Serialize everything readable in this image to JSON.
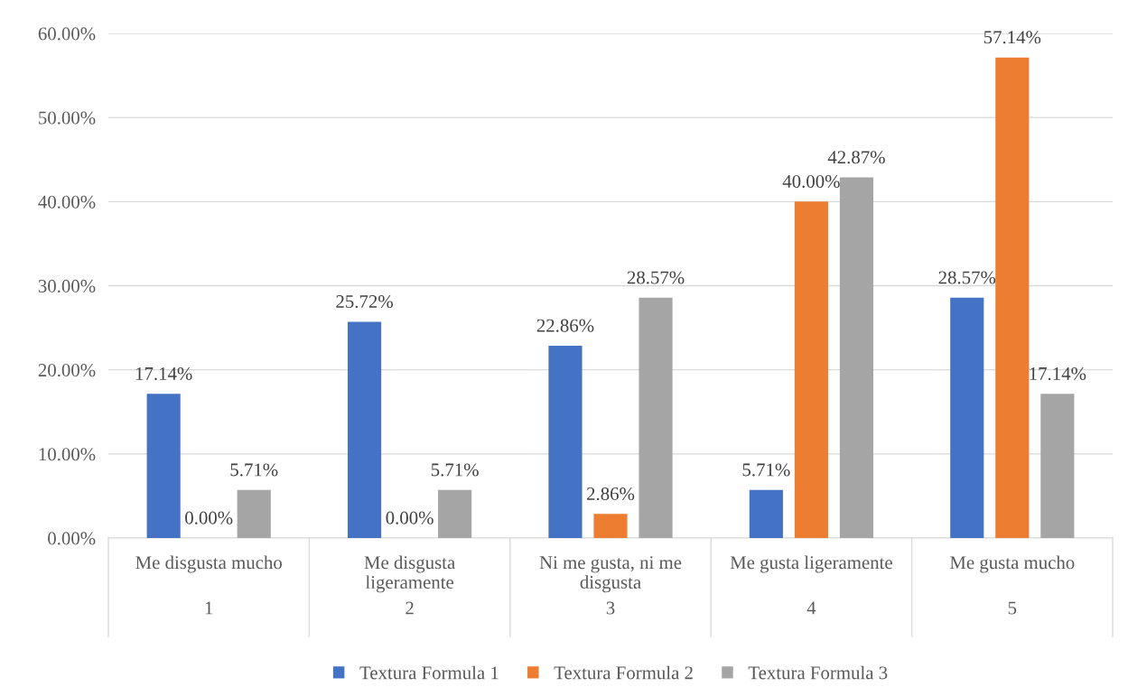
{
  "chart_data": {
    "type": "bar",
    "categories": [
      "Me disgusta mucho",
      "Me disgusta\nligeramente",
      "Ni me gusta, ni me\ndisgusta",
      "Me gusta ligeramente",
      "Me gusta mucho"
    ],
    "series": [
      {
        "name": "Textura Formula 1",
        "color": "#4472c4",
        "values": [
          17.14,
          25.72,
          22.86,
          5.71,
          28.57
        ],
        "value_labels": [
          "17.14%",
          "25.72%",
          "22.86%",
          "5.71%",
          "28.57%"
        ]
      },
      {
        "name": "Textura Formula 2",
        "color": "#ed7d31",
        "values": [
          0,
          0,
          2.86,
          40,
          57.14
        ],
        "value_labels": [
          "0.00%",
          "0.00%",
          "2.86%",
          "40.00%",
          "57.14%"
        ]
      },
      {
        "name": "Textura Formula 3",
        "color": "#a5a5a5",
        "values": [
          5.71,
          5.71,
          28.57,
          42.87,
          17.14
        ],
        "value_labels": [
          "5.71%",
          "5.71%",
          "28.57%",
          "42.87%",
          "17.14%"
        ]
      }
    ],
    "annotations": [
      "1",
      "2",
      "3",
      "4",
      "5"
    ],
    "ylim": [
      0,
      60
    ],
    "yticks": [
      {
        "value": 0,
        "label": "0.00%"
      },
      {
        "value": 10,
        "label": "10.00%"
      },
      {
        "value": 20,
        "label": "20.00%"
      },
      {
        "value": 30,
        "label": "30.00%"
      },
      {
        "value": 40,
        "label": "40.00%"
      },
      {
        "value": 50,
        "label": "50.00%"
      },
      {
        "value": 60,
        "label": "60.00%"
      }
    ],
    "grid": "y",
    "legend": "bottom"
  }
}
